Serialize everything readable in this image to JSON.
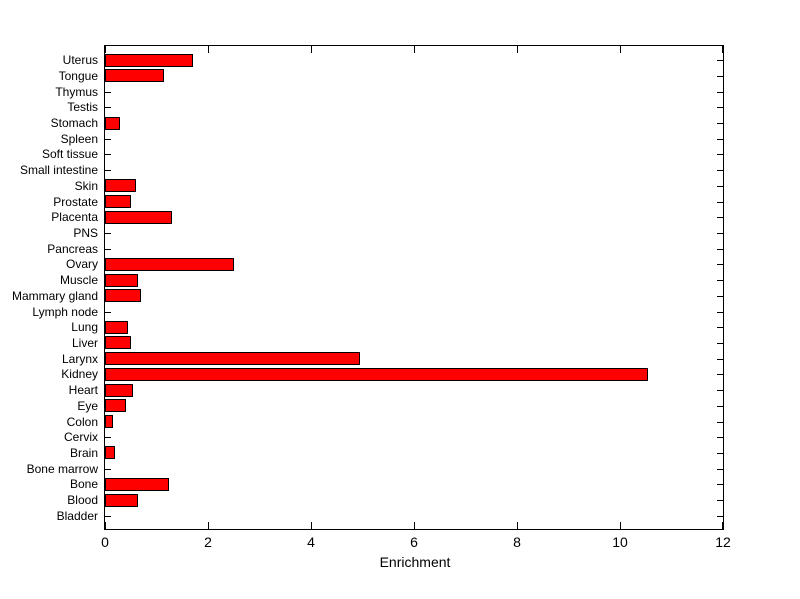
{
  "chart_data": {
    "type": "bar",
    "orientation": "horizontal",
    "title": "",
    "xlabel": "Enrichment",
    "ylabel": "",
    "xlim": [
      0,
      12
    ],
    "xticks": [
      0,
      2,
      4,
      6,
      8,
      10,
      12
    ],
    "grid": false,
    "legend": null,
    "bar_color": "#ff0000",
    "bar_edge_color": "#000000",
    "background_color": "#ffffff",
    "axis_color": "#000000",
    "categories": [
      "Uterus",
      "Tongue",
      "Thymus",
      "Testis",
      "Stomach",
      "Spleen",
      "Soft tissue",
      "Small intestine",
      "Skin",
      "Prostate",
      "Placenta",
      "PNS",
      "Pancreas",
      "Ovary",
      "Muscle",
      "Mammary gland",
      "Lymph node",
      "Lung",
      "Liver",
      "Larynx",
      "Kidney",
      "Heart",
      "Eye",
      "Colon",
      "Cervix",
      "Brain",
      "Bone marrow",
      "Bone",
      "Blood",
      "Bladder"
    ],
    "values": [
      1.7,
      1.15,
      0,
      0,
      0.3,
      0,
      0,
      0,
      0.6,
      0.5,
      1.3,
      0,
      0,
      2.5,
      0.65,
      0.7,
      0,
      0.45,
      0.5,
      4.95,
      10.55,
      0.55,
      0.4,
      0.15,
      0,
      0.2,
      0,
      1.25,
      0.65,
      0
    ]
  }
}
